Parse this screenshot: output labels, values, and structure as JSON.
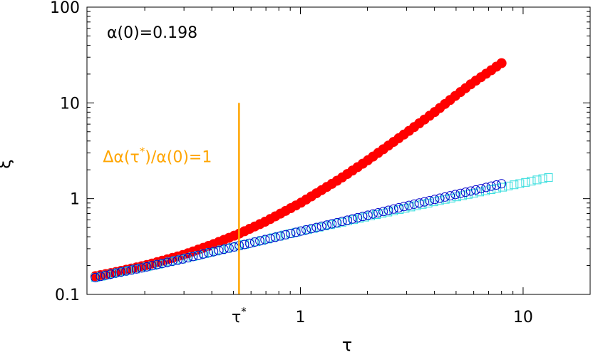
{
  "chart_data": {
    "type": "scatter",
    "xscale": "log",
    "yscale": "log",
    "xlim": [
      0.11,
      20
    ],
    "ylim": [
      0.1,
      100
    ],
    "xlabel": "τ",
    "ylabel": "ξ",
    "x_ticks": [
      {
        "value": 1,
        "label": "1"
      },
      {
        "value": 10,
        "label": "10"
      }
    ],
    "y_ticks": [
      {
        "value": 0.1,
        "label": "0.1"
      },
      {
        "value": 1,
        "label": "1"
      },
      {
        "value": 10,
        "label": "10"
      },
      {
        "value": 100,
        "label": "100"
      }
    ],
    "tau_star": {
      "value": 0.53,
      "label": "τ*"
    },
    "annotations": {
      "alpha0": "α(0)=0.198",
      "vline": "Δα(τ*)/α(0)=1"
    },
    "series": [
      {
        "color": "#ff0000",
        "marker": "filled-circle",
        "x": [
          0.12,
          0.15,
          0.2,
          0.3,
          0.4,
          0.53,
          0.7,
          1.0,
          1.5,
          2.0,
          3.0,
          4.0,
          5.0,
          6.0,
          7.0,
          8.0
        ],
        "y": [
          0.155,
          0.172,
          0.2,
          0.26,
          0.33,
          0.43,
          0.58,
          0.9,
          1.6,
          2.5,
          4.9,
          8.0,
          12.0,
          16.5,
          21.0,
          26.0
        ]
      },
      {
        "color": "#0000cc",
        "marker": "open-circle",
        "x": [
          0.12,
          0.15,
          0.2,
          0.3,
          0.4,
          0.53,
          0.7,
          1.0,
          1.5,
          2.0,
          3.0,
          4.0,
          5.0,
          6.0,
          7.0,
          8.0
        ],
        "y": [
          0.15,
          0.168,
          0.192,
          0.236,
          0.277,
          0.322,
          0.375,
          0.457,
          0.57,
          0.67,
          0.84,
          0.98,
          1.11,
          1.22,
          1.33,
          1.43
        ]
      },
      {
        "color": "#33dddd",
        "marker": "open-square",
        "x": [
          0.12,
          0.15,
          0.2,
          0.3,
          0.4,
          0.53,
          0.7,
          1.0,
          1.5,
          2.0,
          3.0,
          4.0,
          5.0,
          6.0,
          8.0,
          10.0,
          12.0,
          13.0
        ],
        "y": [
          0.15,
          0.168,
          0.192,
          0.236,
          0.277,
          0.322,
          0.375,
          0.457,
          0.56,
          0.65,
          0.8,
          0.93,
          1.04,
          1.14,
          1.31,
          1.46,
          1.6,
          1.66
        ]
      }
    ],
    "tau_star_line": {
      "color": "#ffa500"
    },
    "grid": false,
    "legend": "none"
  }
}
